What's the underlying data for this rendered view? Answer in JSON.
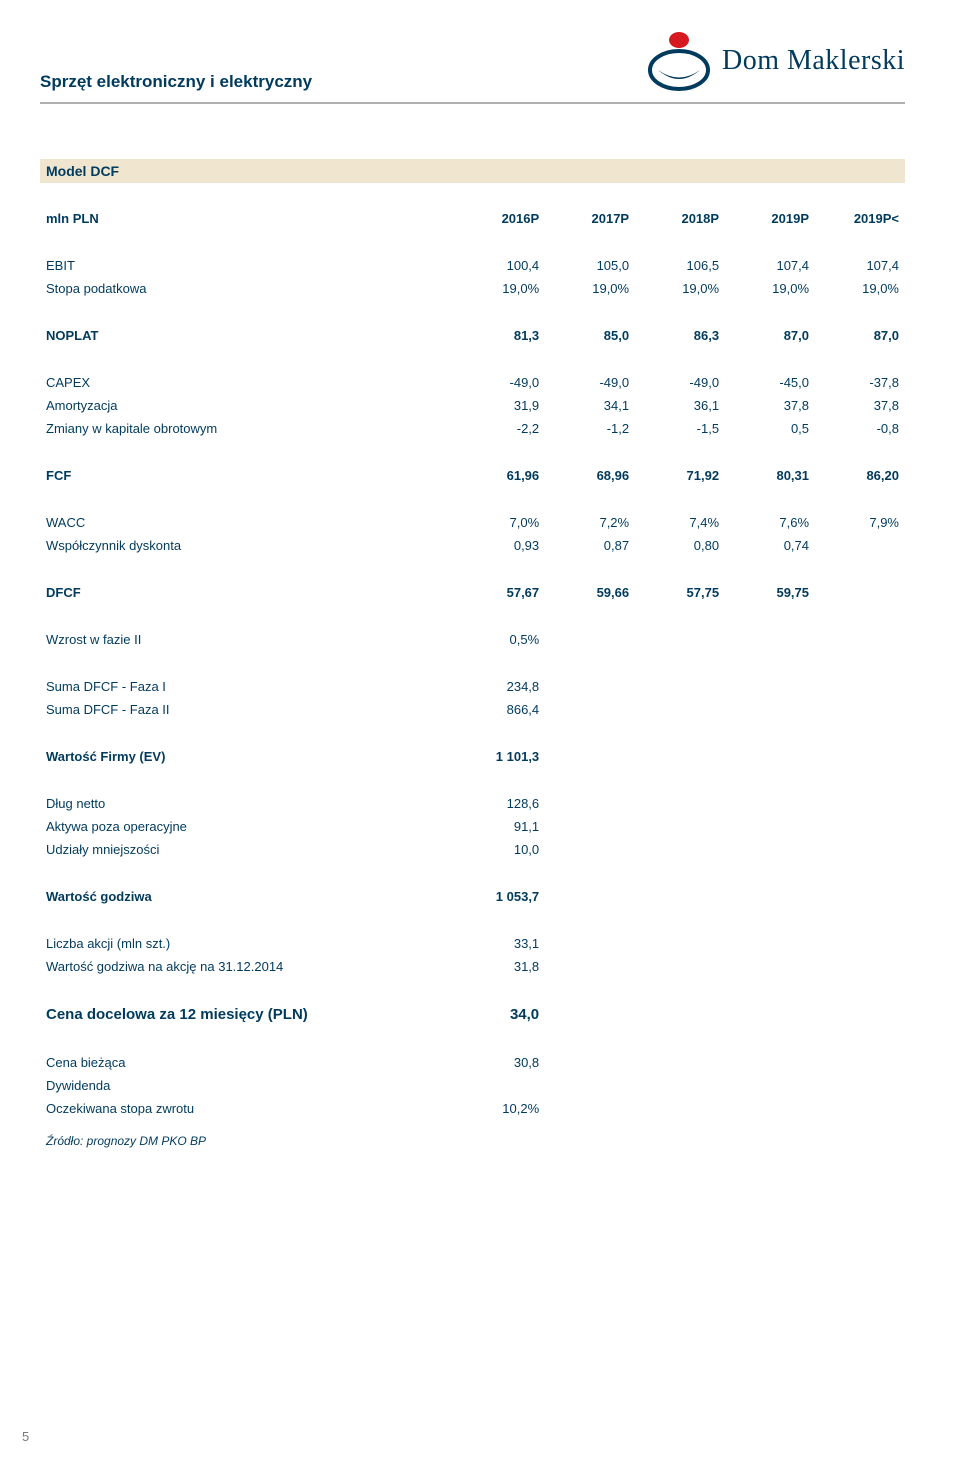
{
  "header": {
    "title": "Sprzęt elektroniczny i elektryczny",
    "brand": "Dom Maklerski",
    "page_number": "5"
  },
  "logo": {
    "bg": "#ffffff",
    "outline": "#003a5d",
    "dot": "#d71920"
  },
  "dcf": {
    "title": "Model DCF",
    "col_heads": [
      "mln PLN",
      "2016P",
      "2017P",
      "2018P",
      "2019P",
      "2019P<"
    ],
    "rows": [
      {
        "label": "EBIT",
        "v": [
          "100,4",
          "105,0",
          "106,5",
          "107,4",
          "107,4"
        ]
      },
      {
        "label": "Stopa podatkowa",
        "v": [
          "19,0%",
          "19,0%",
          "19,0%",
          "19,0%",
          "19,0%"
        ]
      }
    ],
    "noplat": {
      "label": "NOPLAT",
      "v": [
        "81,3",
        "85,0",
        "86,3",
        "87,0",
        "87,0"
      ]
    },
    "rows2": [
      {
        "label": "CAPEX",
        "v": [
          "-49,0",
          "-49,0",
          "-49,0",
          "-45,0",
          "-37,8"
        ]
      },
      {
        "label": "Amortyzacja",
        "v": [
          "31,9",
          "34,1",
          "36,1",
          "37,8",
          "37,8"
        ]
      },
      {
        "label": "Zmiany w kapitale obrotowym",
        "v": [
          "-2,2",
          "-1,2",
          "-1,5",
          "0,5",
          "-0,8"
        ]
      }
    ],
    "fcf": {
      "label": "FCF",
      "v": [
        "61,96",
        "68,96",
        "71,92",
        "80,31",
        "86,20"
      ]
    },
    "rows3": [
      {
        "label": "WACC",
        "v": [
          "7,0%",
          "7,2%",
          "7,4%",
          "7,6%",
          "7,9%"
        ]
      },
      {
        "label": "Współczynnik dyskonta",
        "v": [
          "0,93",
          "0,87",
          "0,80",
          "0,74",
          ""
        ]
      }
    ],
    "dfcf": {
      "label": "DFCF",
      "v": [
        "57,67",
        "59,66",
        "57,75",
        "59,75",
        ""
      ]
    },
    "single": [
      {
        "label": "Wzrost w fazie II",
        "v": "0,5%",
        "bold": false
      },
      {
        "blank": true
      },
      {
        "label": "Suma DFCF - Faza I",
        "v": "234,8",
        "bold": false
      },
      {
        "label": "Suma DFCF - Faza II",
        "v": "866,4",
        "bold": false
      },
      {
        "blank": true
      },
      {
        "label": "Wartość Firmy (EV)",
        "v": "1 101,3",
        "bold": true
      },
      {
        "blank": true
      },
      {
        "label": "Dług netto",
        "v": "128,6",
        "bold": false
      },
      {
        "label": "Aktywa poza operacyjne",
        "v": "91,1",
        "bold": false
      },
      {
        "label": "Udziały mniejszości",
        "v": "10,0",
        "bold": false
      },
      {
        "blank": true
      },
      {
        "label": "Wartość godziwa",
        "v": "1 053,7",
        "bold": true
      },
      {
        "blank": true
      },
      {
        "label": "Liczba akcji (mln szt.)",
        "v": "33,1",
        "bold": false
      },
      {
        "label": "Wartość godziwa na akcję na 31.12.2014",
        "v": "31,8",
        "bold": false
      }
    ],
    "target": {
      "label": "Cena docelowa za 12 miesięcy (PLN)",
      "v": "34,0"
    },
    "after": [
      {
        "label": "Cena bieżąca",
        "v": "30,8",
        "bold": false
      },
      {
        "label": "Dywidenda",
        "v": "",
        "bold": false
      },
      {
        "label": "Oczekiwana stopa zwrotu",
        "v": "10,2%",
        "bold": false
      }
    ],
    "source": "Źródło: prognozy DM PKO BP"
  }
}
